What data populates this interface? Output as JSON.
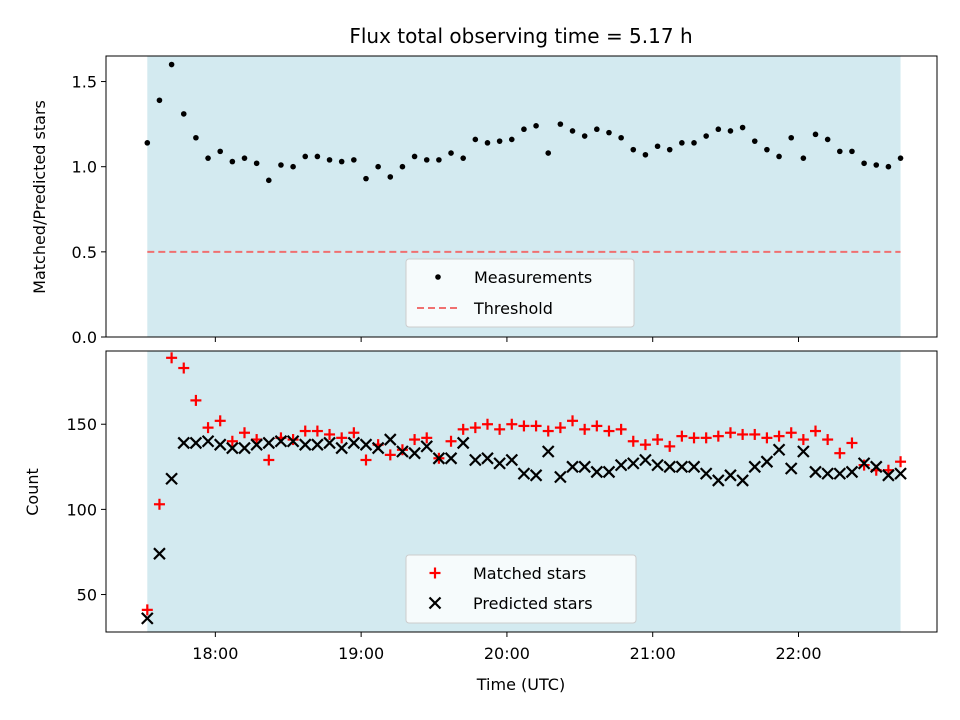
{
  "chart_data": [
    {
      "type": "scatter",
      "title": "Flux total observing time = 5.17 h",
      "xlabel": "",
      "ylabel": "Matched/Predicted stars",
      "xlim": [
        "17:15",
        "22:57"
      ],
      "ylim": [
        0,
        1.65
      ],
      "yticks": [
        "0.0",
        "0.5",
        "1.0",
        "1.5"
      ],
      "grid": false,
      "legend_position": "lower-center",
      "observing_window": [
        "17:32",
        "22:42"
      ],
      "observing_window_color": "#d3eaf0",
      "threshold": {
        "label": "Threshold",
        "value": 0.5,
        "color": "#f07070",
        "style": "dashed"
      },
      "series": [
        {
          "name": "Measurements",
          "marker": "dot",
          "color": "#000000",
          "x": [
            "17:32",
            "17:37",
            "17:42",
            "17:47",
            "17:52",
            "17:57",
            "18:02",
            "18:07",
            "18:12",
            "18:17",
            "18:22",
            "18:27",
            "18:32",
            "18:37",
            "18:42",
            "18:47",
            "18:52",
            "18:57",
            "19:02",
            "19:07",
            "19:12",
            "19:17",
            "19:22",
            "19:27",
            "19:32",
            "19:37",
            "19:42",
            "19:47",
            "19:52",
            "19:57",
            "20:02",
            "20:07",
            "20:12",
            "20:17",
            "20:22",
            "20:27",
            "20:32",
            "20:37",
            "20:42",
            "20:47",
            "20:52",
            "20:57",
            "21:02",
            "21:07",
            "21:12",
            "21:17",
            "21:22",
            "21:27",
            "21:32",
            "21:37",
            "21:42",
            "21:47",
            "21:52",
            "21:57",
            "22:02",
            "22:07",
            "22:12",
            "22:17",
            "22:22",
            "22:27",
            "22:32",
            "22:37",
            "22:42"
          ],
          "values": [
            1.14,
            1.39,
            1.6,
            1.31,
            1.17,
            1.05,
            1.09,
            1.03,
            1.05,
            1.02,
            0.92,
            1.01,
            1.0,
            1.06,
            1.06,
            1.04,
            1.03,
            1.04,
            0.93,
            1.0,
            0.94,
            1.0,
            1.06,
            1.04,
            1.04,
            1.08,
            1.05,
            1.16,
            1.14,
            1.15,
            1.16,
            1.22,
            1.24,
            1.08,
            1.25,
            1.21,
            1.18,
            1.22,
            1.2,
            1.17,
            1.1,
            1.07,
            1.12,
            1.1,
            1.14,
            1.14,
            1.18,
            1.22,
            1.21,
            1.23,
            1.15,
            1.1,
            1.06,
            1.17,
            1.05,
            1.19,
            1.16,
            1.09,
            1.09,
            1.02,
            1.01,
            1.0,
            1.05
          ]
        }
      ]
    },
    {
      "type": "scatter",
      "title": "",
      "xlabel": "Time (UTC)",
      "ylabel": "Count",
      "xlim": [
        "17:15",
        "22:57"
      ],
      "ylim": [
        28,
        193
      ],
      "xticks": [
        "18:00",
        "19:00",
        "20:00",
        "21:00",
        "22:00"
      ],
      "yticks": [
        "50",
        "100",
        "150"
      ],
      "grid": false,
      "legend_position": "lower-center",
      "observing_window": [
        "17:32",
        "22:42"
      ],
      "observing_window_color": "#d3eaf0",
      "series": [
        {
          "name": "Matched stars",
          "marker": "plus",
          "color": "#ff0000",
          "x": [
            "17:32",
            "17:37",
            "17:42",
            "17:47",
            "17:52",
            "17:57",
            "18:02",
            "18:07",
            "18:12",
            "18:17",
            "18:22",
            "18:27",
            "18:32",
            "18:37",
            "18:42",
            "18:47",
            "18:52",
            "18:57",
            "19:02",
            "19:07",
            "19:12",
            "19:17",
            "19:22",
            "19:27",
            "19:32",
            "19:37",
            "19:42",
            "19:47",
            "19:52",
            "19:57",
            "20:02",
            "20:07",
            "20:12",
            "20:17",
            "20:22",
            "20:27",
            "20:32",
            "20:37",
            "20:42",
            "20:47",
            "20:52",
            "20:57",
            "21:02",
            "21:07",
            "21:12",
            "21:17",
            "21:22",
            "21:27",
            "21:32",
            "21:37",
            "21:42",
            "21:47",
            "21:52",
            "21:57",
            "22:02",
            "22:07",
            "22:12",
            "22:17",
            "22:22",
            "22:27",
            "22:32",
            "22:37",
            "22:42"
          ],
          "values": [
            41,
            103,
            189,
            183,
            164,
            148,
            152,
            140,
            145,
            141,
            129,
            142,
            141,
            146,
            146,
            144,
            142,
            145,
            129,
            138,
            132,
            135,
            141,
            142,
            130,
            140,
            147,
            148,
            150,
            147,
            150,
            149,
            149,
            146,
            148,
            152,
            147,
            149,
            146,
            147,
            140,
            138,
            141,
            137,
            143,
            142,
            142,
            143,
            145,
            144,
            144,
            142,
            143,
            145,
            141,
            146,
            141,
            133,
            139,
            126,
            123,
            123,
            128
          ]
        },
        {
          "name": "Predicted stars",
          "marker": "x",
          "color": "#000000",
          "x": [
            "17:32",
            "17:37",
            "17:42",
            "17:47",
            "17:52",
            "17:57",
            "18:02",
            "18:07",
            "18:12",
            "18:17",
            "18:22",
            "18:27",
            "18:32",
            "18:37",
            "18:42",
            "18:47",
            "18:52",
            "18:57",
            "19:02",
            "19:07",
            "19:12",
            "19:17",
            "19:22",
            "19:27",
            "19:32",
            "19:37",
            "19:42",
            "19:47",
            "19:52",
            "19:57",
            "20:02",
            "20:07",
            "20:12",
            "20:17",
            "20:22",
            "20:27",
            "20:32",
            "20:37",
            "20:42",
            "20:47",
            "20:52",
            "20:57",
            "21:02",
            "21:07",
            "21:12",
            "21:17",
            "21:22",
            "21:27",
            "21:32",
            "21:37",
            "21:42",
            "21:47",
            "21:52",
            "21:57",
            "22:02",
            "22:07",
            "22:12",
            "22:17",
            "22:22",
            "22:27",
            "22:32",
            "22:37",
            "22:42"
          ],
          "values": [
            36,
            74,
            118,
            139,
            139,
            140,
            138,
            136,
            136,
            138,
            139,
            140,
            140,
            138,
            138,
            139,
            136,
            139,
            138,
            136,
            141,
            134,
            133,
            137,
            130,
            130,
            139,
            129,
            130,
            127,
            129,
            121,
            120,
            134,
            119,
            125,
            125,
            122,
            122,
            126,
            127,
            129,
            126,
            125,
            125,
            125,
            121,
            117,
            120,
            117,
            125,
            128,
            135,
            124,
            134,
            122,
            121,
            121,
            122,
            127,
            125,
            120,
            121
          ]
        }
      ]
    }
  ]
}
